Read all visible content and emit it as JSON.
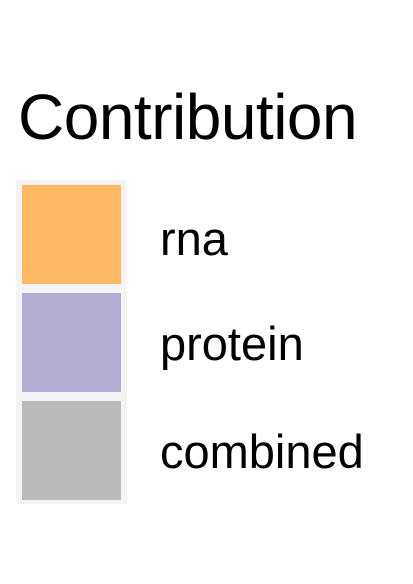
{
  "chart_data": {
    "type": "legend",
    "title": "Contribution",
    "entries": [
      {
        "label": "rna",
        "color": "#FDB863"
      },
      {
        "label": "protein",
        "color": "#B2ABD2"
      },
      {
        "label": "combined",
        "color": "#BBBBBB"
      }
    ]
  }
}
